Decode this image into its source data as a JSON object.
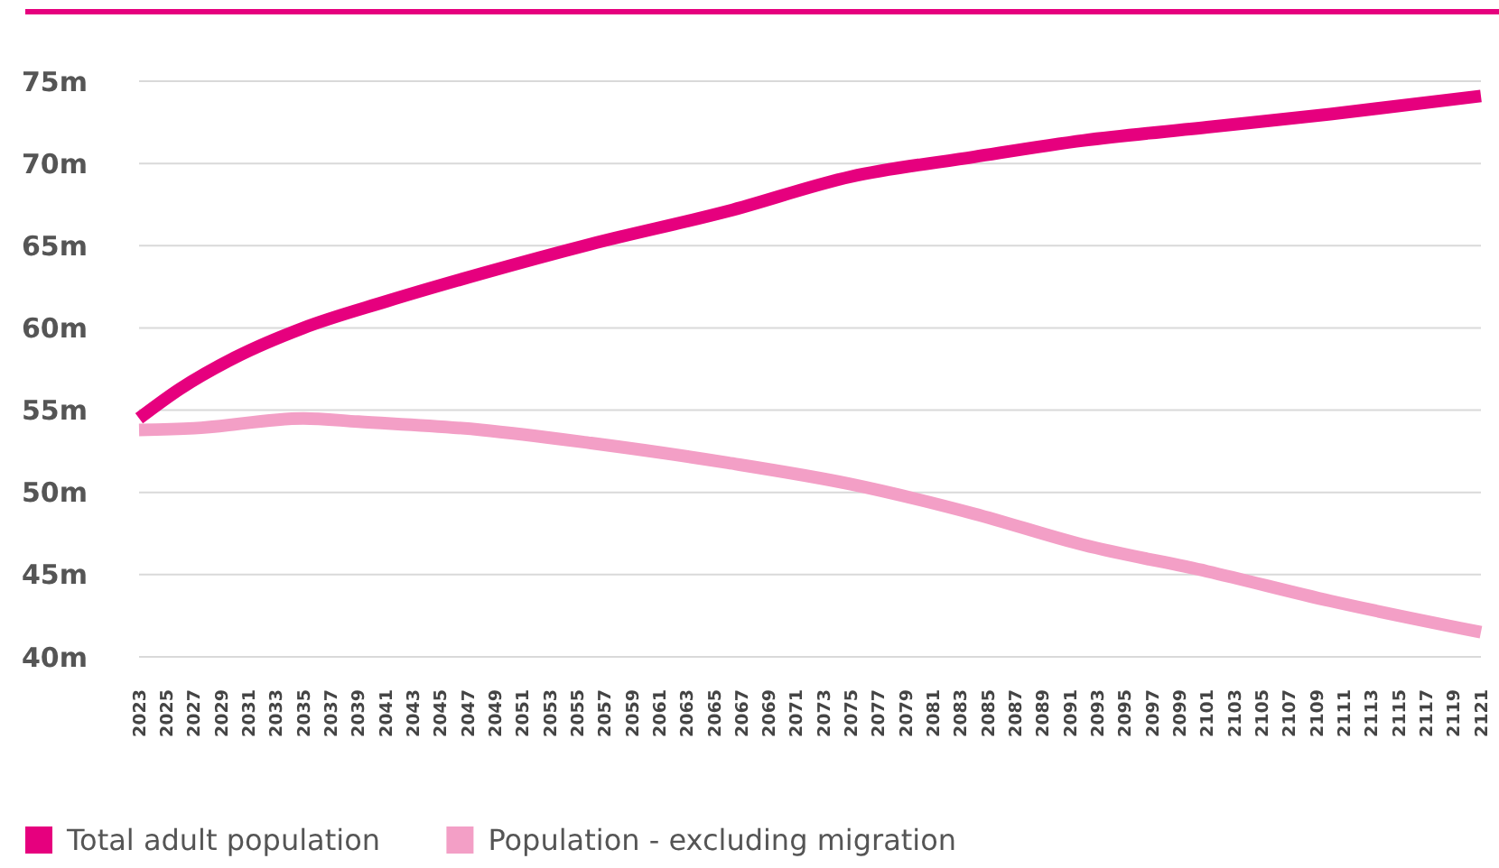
{
  "chart_data": {
    "type": "line",
    "legend": "bottom left",
    "grid": "y",
    "line_style": "solid",
    "ylim": [
      40,
      75
    ],
    "yticks": [
      {
        "value": 40,
        "label": "40m"
      },
      {
        "value": 45,
        "label": "45m"
      },
      {
        "value": 50,
        "label": "50m"
      },
      {
        "value": 55,
        "label": "55m"
      },
      {
        "value": 60,
        "label": "60m"
      },
      {
        "value": 65,
        "label": "65m"
      },
      {
        "value": 70,
        "label": "70m"
      },
      {
        "value": 75,
        "label": "75m"
      }
    ],
    "xlim": [
      2023,
      2121
    ],
    "xticks": [
      2023,
      2025,
      2027,
      2029,
      2031,
      2033,
      2035,
      2037,
      2039,
      2041,
      2043,
      2045,
      2047,
      2049,
      2051,
      2053,
      2055,
      2057,
      2059,
      2061,
      2063,
      2065,
      2067,
      2069,
      2071,
      2073,
      2075,
      2077,
      2079,
      2081,
      2083,
      2085,
      2087,
      2089,
      2091,
      2093,
      2095,
      2097,
      2099,
      2101,
      2103,
      2105,
      2107,
      2109,
      2111,
      2113,
      2115,
      2117,
      2119,
      2121
    ],
    "series": [
      {
        "name": "Total adult population",
        "color": "#e6007e",
        "x": [
          2023,
          2026,
          2030,
          2035,
          2041,
          2048,
          2056,
          2066,
          2075,
          2084,
          2092,
          2101,
          2110,
          2121
        ],
        "values": [
          54.5,
          56.3,
          58.2,
          60.0,
          61.6,
          63.3,
          65.1,
          67.1,
          69.2,
          70.4,
          71.4,
          72.2,
          73.0,
          74.1
        ]
      },
      {
        "name": "Population - excluding migration",
        "color": "#f39fc6",
        "x": [
          2023,
          2027,
          2035,
          2039,
          2048,
          2056,
          2066,
          2075,
          2084,
          2092,
          2101,
          2110,
          2121
        ],
        "values": [
          53.8,
          53.9,
          54.5,
          54.3,
          53.8,
          53.0,
          51.8,
          50.5,
          48.7,
          46.8,
          45.2,
          43.4,
          41.5
        ]
      }
    ]
  }
}
